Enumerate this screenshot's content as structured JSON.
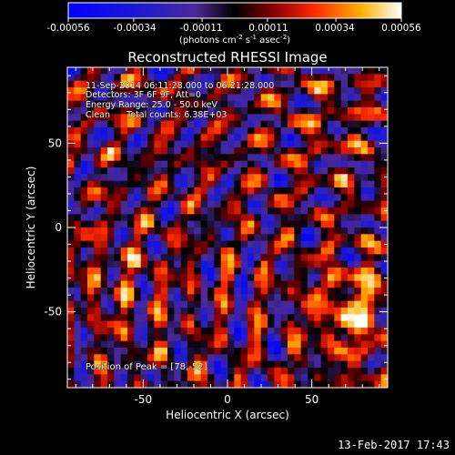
{
  "chart_data": {
    "type": "heatmap",
    "title": "Reconstructed RHESSI Image",
    "xlabel": "Heliocentric X (arcsec)",
    "ylabel": "Heliocentric Y (arcsec)",
    "xlim": [
      -95,
      95
    ],
    "ylim": [
      -95,
      95
    ],
    "xticks": [
      -50,
      0,
      50
    ],
    "yticks": [
      -50,
      0,
      50
    ],
    "colorbar": {
      "range": [
        -0.00056,
        0.00056
      ],
      "ticks": [
        "-0.00056",
        "-0.00034",
        "-0.00011",
        "0.00011",
        "0.00034",
        "0.00056"
      ],
      "units": "(photons cm-2 s-1 asec-2)",
      "units_parts": {
        "a": "(photons cm",
        "b": "-2",
        "c": " s",
        "d": "-1",
        "e": " asec",
        "f": "-2",
        "g": ")"
      }
    },
    "annotations": [
      "11-Sep-2014 06:11:28.000 to 06:21:28.000",
      "Detectors: 3F 6F 9F, Att=0",
      "Energy Range: 25.0 - 50.0 keV",
      "Clean      Total counts: 6.38E+03"
    ],
    "peak_label": "Position of Peak = [78,-52]",
    "peak": [
      78,
      -52
    ],
    "pixel_size_arcsec": 4,
    "pattern": "ring-like sidelobe structure; brightest region near lower-right around the peak, additional bright zones lower-left and upper-right"
  },
  "footer": {
    "date": "13-Feb-2017 17:43"
  }
}
